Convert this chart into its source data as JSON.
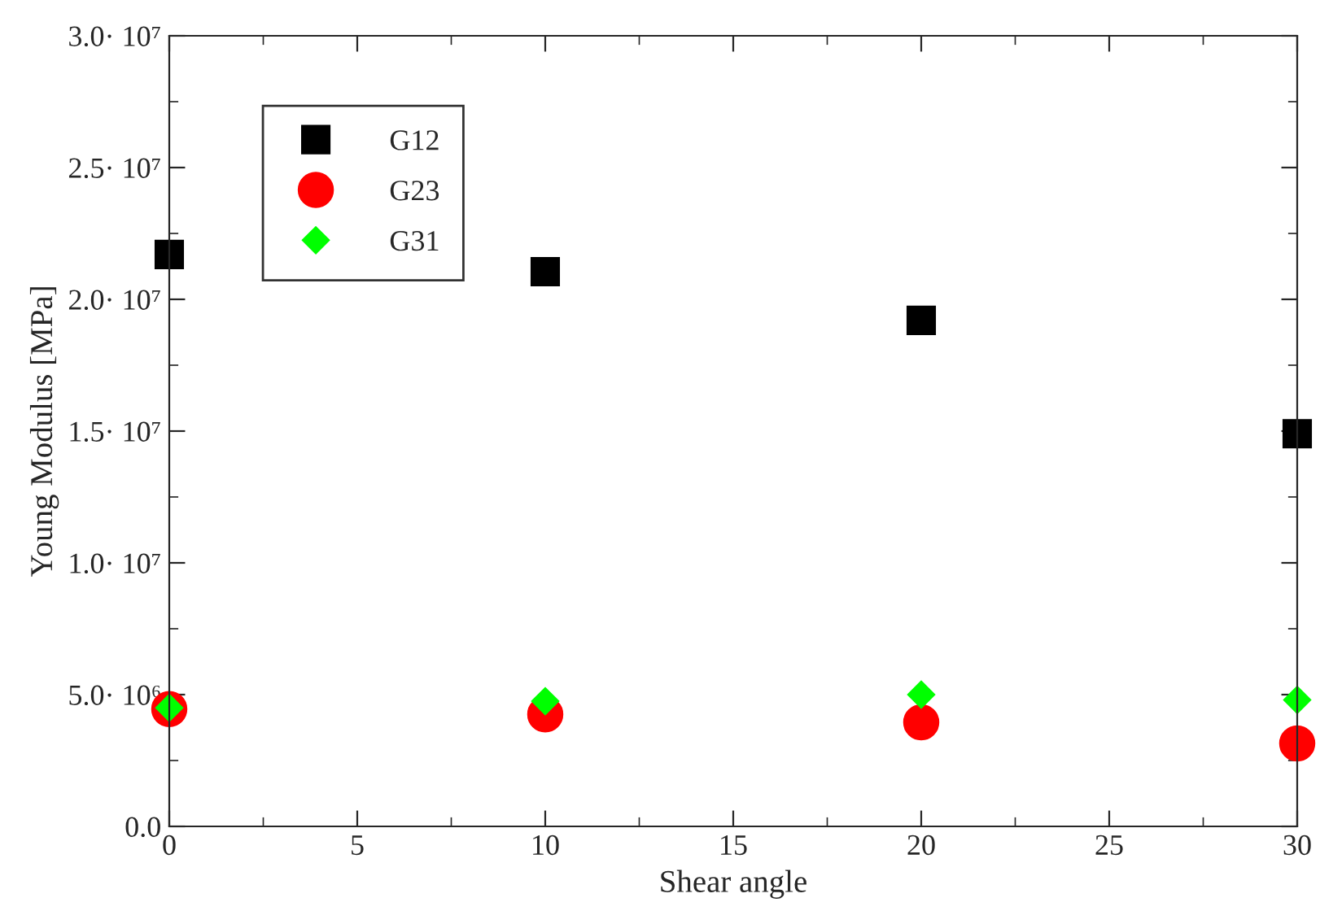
{
  "chart_data": {
    "type": "scatter",
    "xlabel": "Shear angle",
    "ylabel": "Young Modulus [MPa]",
    "xlim": [
      0,
      30
    ],
    "xticks": [
      0,
      5,
      10,
      15,
      20,
      25,
      30
    ],
    "ylim": [
      0,
      30000000
    ],
    "yticks": [
      {
        "value": 0,
        "label": "0.0"
      },
      {
        "value": 5000000,
        "label": "5.0· 10⁶"
      },
      {
        "value": 10000000,
        "label": "1.0· 10⁷"
      },
      {
        "value": 15000000,
        "label": "1.5· 10⁷"
      },
      {
        "value": 20000000,
        "label": "2.0· 10⁷"
      },
      {
        "value": 25000000,
        "label": "2.5· 10⁷"
      },
      {
        "value": 30000000,
        "label": "3.0· 10⁷"
      }
    ],
    "x": [
      0,
      10,
      20,
      30
    ],
    "series": [
      {
        "name": "G12",
        "color": "#000000",
        "marker": "square",
        "values": [
          21700000,
          21050000,
          19200000,
          14900000
        ]
      },
      {
        "name": "G23",
        "color": "#ff0000",
        "marker": "circle",
        "values": [
          4450000,
          4250000,
          3950000,
          3150000
        ]
      },
      {
        "name": "G31",
        "color": "#00ff00",
        "marker": "diamond",
        "values": [
          4500000,
          4750000,
          5000000,
          4800000
        ]
      }
    ],
    "legend": "top left",
    "grid": false
  }
}
